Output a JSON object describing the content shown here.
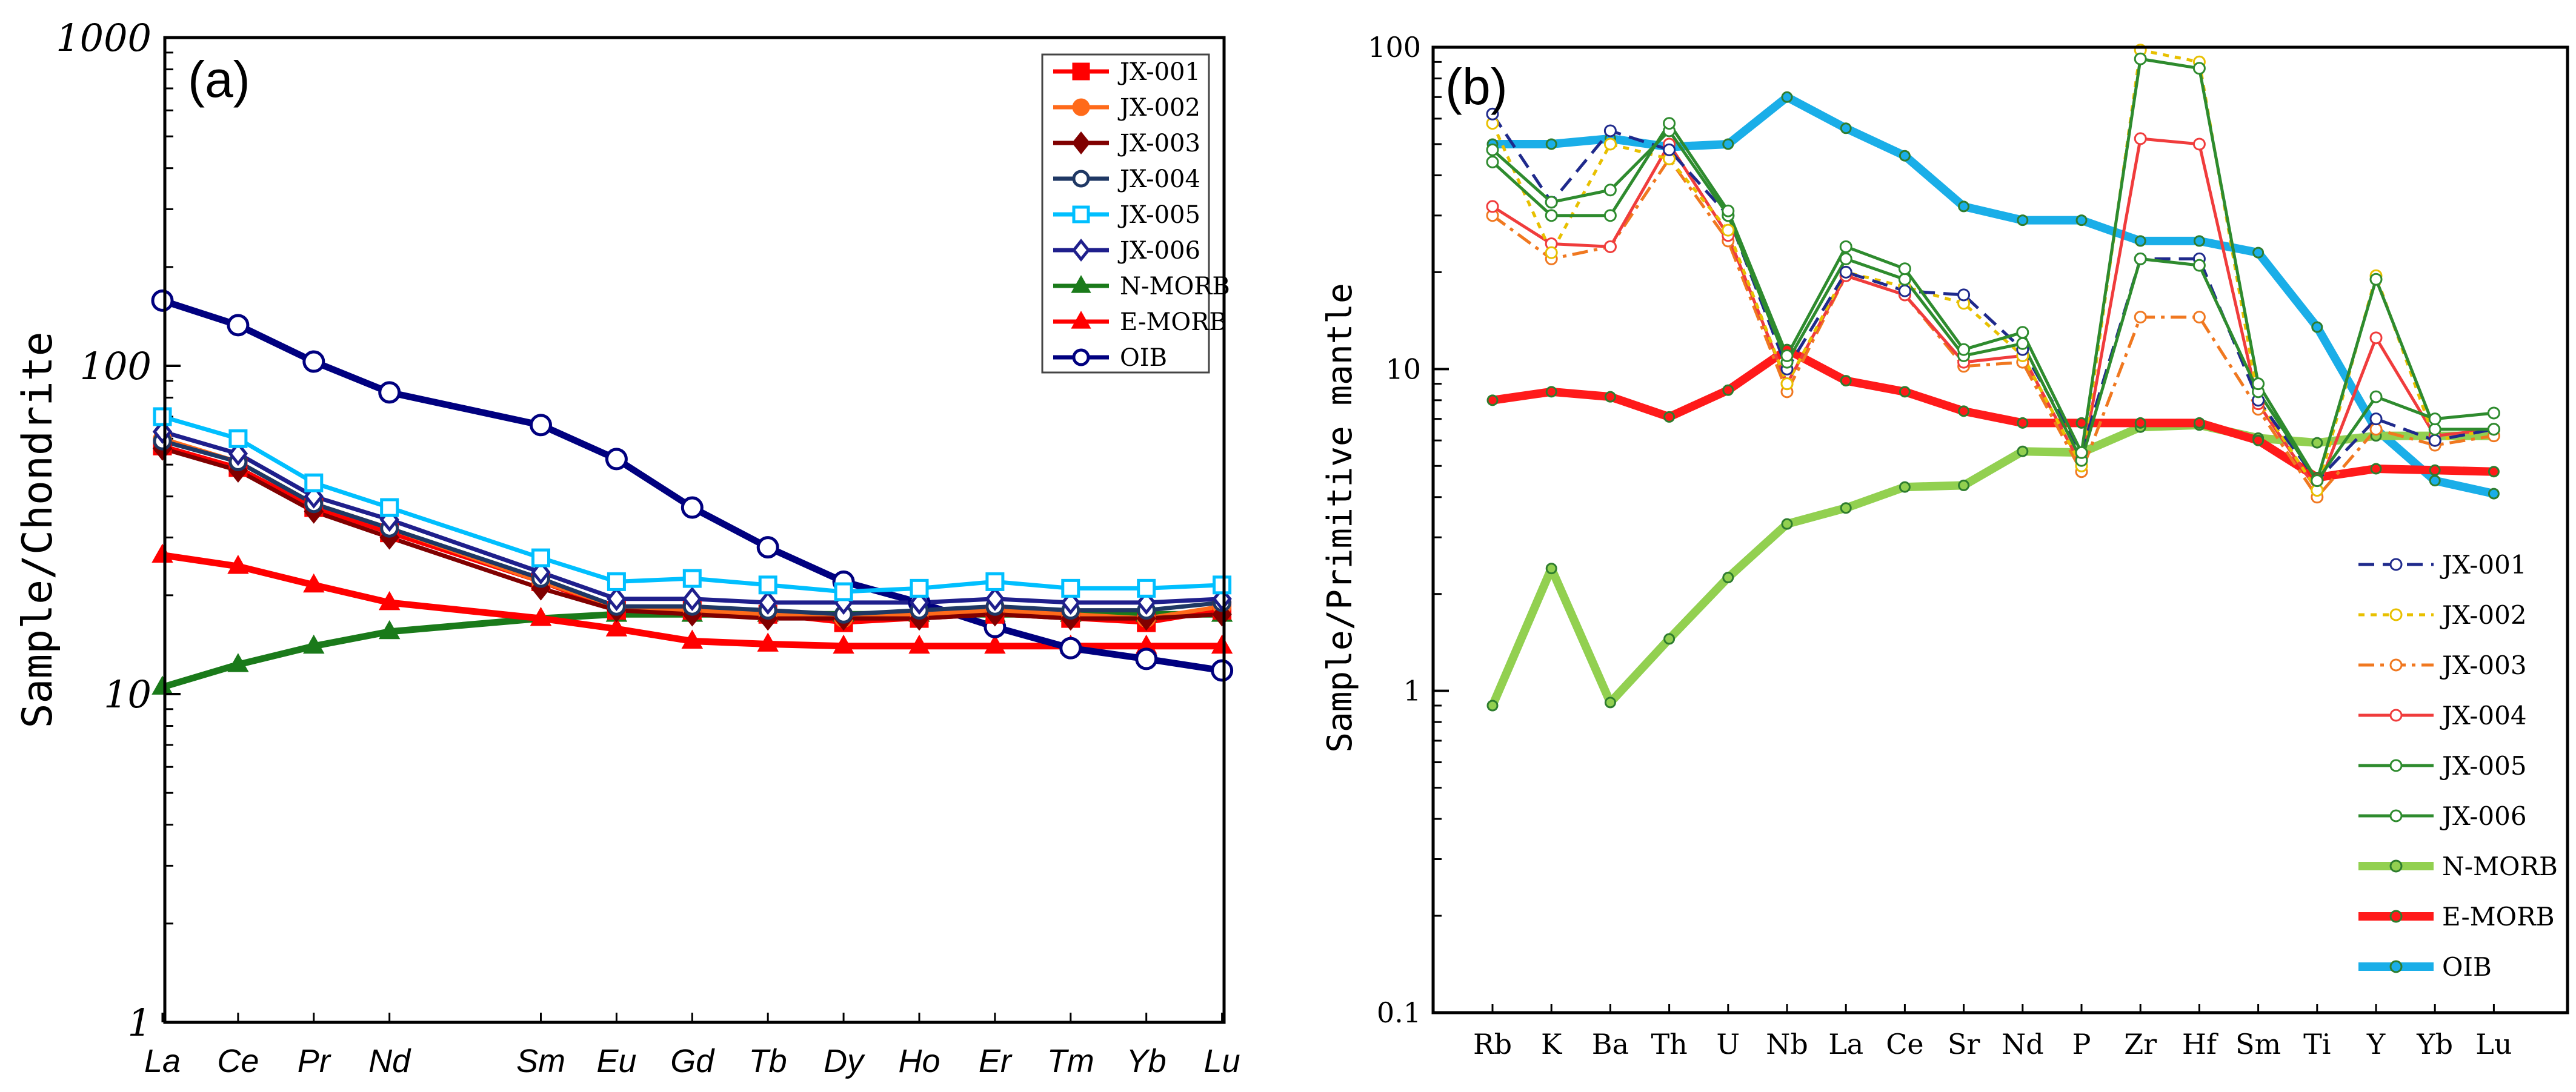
{
  "chart_data": [
    {
      "type": "line",
      "panel_label": "(a)",
      "title": "",
      "xlabel": "",
      "ylabel": "Sample/Chondrite",
      "yscale": "log",
      "ylim": [
        1,
        1000
      ],
      "yticks": [
        "1",
        "10",
        "100",
        "1000"
      ],
      "categories": [
        "La",
        "Ce",
        "Pr",
        "Nd",
        "Sm",
        "Eu",
        "Gd",
        "Tb",
        "Dy",
        "Ho",
        "Er",
        "Tm",
        "Yb",
        "Lu"
      ],
      "category_positions": [
        0,
        1,
        2,
        3,
        5,
        6,
        7,
        8,
        9,
        10,
        11,
        12,
        13,
        14
      ],
      "legend_position": "top-right",
      "series": [
        {
          "name": "JX-001",
          "color": "#ff0000",
          "marker": "square-filled",
          "values": [
            57,
            49,
            37,
            31,
            22,
            18,
            18,
            17.5,
            16.5,
            17,
            17.5,
            17,
            16.5,
            18
          ]
        },
        {
          "name": "JX-002",
          "color": "#ff6a1a",
          "marker": "circle-filled",
          "values": [
            60,
            51,
            38,
            32,
            22,
            18.5,
            18,
            17.5,
            17,
            17.5,
            18,
            17.5,
            17,
            18.5
          ]
        },
        {
          "name": "JX-003",
          "color": "#800000",
          "marker": "diamond-filled",
          "values": [
            56,
            48,
            36,
            30,
            21,
            18,
            17.5,
            17,
            17,
            17,
            17.5,
            17,
            17,
            17.5
          ]
        },
        {
          "name": "JX-004",
          "color": "#1f3864",
          "marker": "circle-open",
          "values": [
            59,
            51,
            38,
            32,
            22.5,
            18.5,
            18.5,
            18,
            17.5,
            18,
            18.5,
            18,
            18,
            19
          ]
        },
        {
          "name": "JX-005",
          "color": "#00bfff",
          "marker": "square-open",
          "values": [
            70,
            60,
            44,
            37,
            26,
            22,
            22.5,
            21.5,
            20.5,
            21,
            22,
            21,
            21,
            21.5
          ]
        },
        {
          "name": "JX-006",
          "color": "#1f1f8c",
          "marker": "diamond-open",
          "values": [
            63,
            54,
            40,
            34,
            23.5,
            19.5,
            19.5,
            19,
            19,
            19,
            19.5,
            19,
            19,
            19.5
          ]
        },
        {
          "name": "N-MORB",
          "color": "#1a7a1a",
          "marker": "triangle-filled",
          "values": [
            10.5,
            12.3,
            14,
            15.5,
            17,
            17.5,
            17.5,
            17.5,
            17.5,
            17.5,
            17.5,
            17.5,
            17.5,
            17.5
          ]
        },
        {
          "name": "E-MORB",
          "color": "#ff0000",
          "marker": "triangle-filled",
          "values": [
            26.5,
            24.5,
            21.5,
            19,
            17,
            15.8,
            14.5,
            14.2,
            14,
            14,
            14,
            14,
            14,
            14
          ]
        },
        {
          "name": "OIB",
          "color": "#00007f",
          "marker": "circle-open",
          "values": [
            158,
            133,
            103,
            83,
            66,
            52,
            37,
            28,
            22,
            19,
            16,
            13.8,
            12.8,
            11.8
          ]
        }
      ]
    },
    {
      "type": "line",
      "panel_label": "(b)",
      "title": "",
      "xlabel": "",
      "ylabel": "Sample/Primitive mantle",
      "yscale": "log",
      "ylim": [
        0.1,
        100
      ],
      "yticks": [
        "0.1",
        "1",
        "10",
        "100"
      ],
      "categories": [
        "Rb",
        "K",
        "Ba",
        "Th",
        "U",
        "Nb",
        "La",
        "Ce",
        "Sr",
        "Nd",
        "P",
        "Zr",
        "Hf",
        "Sm",
        "Ti",
        "Y",
        "Yb",
        "Lu"
      ],
      "legend_position": "bottom-right",
      "series": [
        {
          "name": "JX-001",
          "color": "#1f2a8c",
          "style": "dashed",
          "values": [
            62,
            33,
            55,
            48,
            30,
            10,
            20,
            17.5,
            17,
            11.5,
            5.5,
            22,
            22,
            8,
            4.5,
            7,
            6,
            6.5
          ]
        },
        {
          "name": "JX-002",
          "color": "#e8c000",
          "style": "dotted",
          "values": [
            58,
            23,
            50,
            45,
            27,
            9,
            20,
            18,
            16,
            11,
            5,
            98,
            90,
            8,
            4.2,
            19.5,
            6,
            6.5
          ]
        },
        {
          "name": "JX-003",
          "color": "#f07820",
          "style": "dashdot",
          "values": [
            30,
            22,
            24,
            45,
            25,
            8.5,
            19.5,
            17,
            10.2,
            10.5,
            4.8,
            14.5,
            14.5,
            7.5,
            4,
            6.5,
            5.8,
            6.2
          ]
        },
        {
          "name": "JX-004",
          "color": "#f03c3c",
          "style": "solid",
          "values": [
            32,
            24.5,
            24,
            50,
            26,
            9,
            19.5,
            17,
            10.5,
            11,
            5,
            52,
            50,
            7.8,
            4.2,
            12.5,
            6.2,
            6.5
          ]
        },
        {
          "name": "JX-005",
          "color": "#2e8b2e",
          "style": "solid",
          "values": [
            44,
            30,
            30,
            58,
            31,
            11,
            24,
            20.5,
            11.5,
            13,
            5.5,
            92,
            86,
            9,
            4.5,
            8.2,
            7,
            7.3
          ]
        },
        {
          "name": "JX-006",
          "color": "#2e8b2e",
          "style": "solid",
          "values": [
            48,
            33,
            36,
            55,
            30,
            10.5,
            22,
            19,
            11,
            12,
            5.2,
            22,
            21,
            8.5,
            4.5,
            19,
            6.5,
            6.5
          ]
        },
        {
          "name": "N-MORB",
          "color": "#92d050",
          "style": "solid-thick",
          "values": [
            0.9,
            2.4,
            0.92,
            1.45,
            2.25,
            3.3,
            3.7,
            4.3,
            4.35,
            5.55,
            5.5,
            6.6,
            6.7,
            6.1,
            5.9,
            6.2,
            6.2,
            6.2
          ]
        },
        {
          "name": "E-MORB",
          "color": "#ff1a1a",
          "style": "solid-thick",
          "values": [
            8,
            8.5,
            8.2,
            7.1,
            8.6,
            11.5,
            9.2,
            8.5,
            7.4,
            6.8,
            6.8,
            6.8,
            6.8,
            6,
            4.6,
            4.9,
            4.85,
            4.8
          ]
        },
        {
          "name": "OIB",
          "color": "#1aaee8",
          "style": "solid-thick",
          "values": [
            50,
            50,
            52,
            49,
            50,
            70,
            56,
            46,
            32,
            29,
            29,
            25,
            25,
            23,
            13.5,
            6.5,
            4.5,
            4.1
          ]
        }
      ]
    }
  ]
}
